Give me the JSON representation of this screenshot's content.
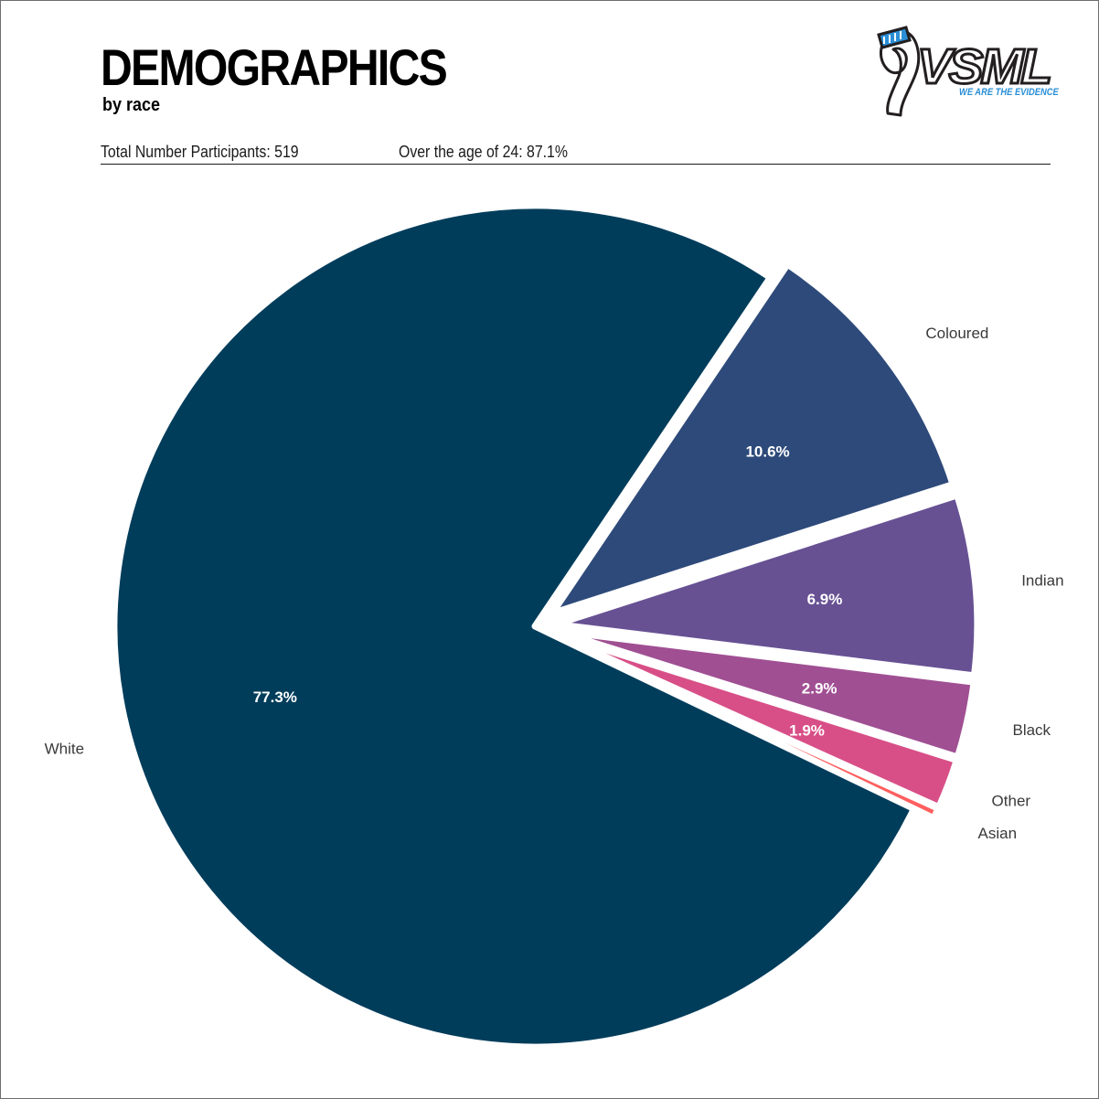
{
  "header": {
    "title": "DEMOGRAPHICS",
    "subtitle": "by race",
    "participants": "Total Number Participants: 519",
    "age": "Over the age of 24: 87.1%"
  },
  "logo": {
    "wordmark": "VSML",
    "tagline": "WE ARE THE EVIDENCE",
    "icon": "ribbon-icon",
    "accent": "#2a8fd6"
  },
  "chart_data": {
    "type": "pie",
    "title": "DEMOGRAPHICS",
    "subtitle": "by race",
    "start_angle_deg": -56,
    "categories": [
      "Coloured",
      "Indian",
      "Black",
      "Other",
      "Asian",
      "White"
    ],
    "values": [
      10.6,
      6.9,
      2.9,
      1.9,
      0.4,
      77.3
    ],
    "value_labels": [
      "10.6%",
      "6.9%",
      "2.9%",
      "1.9%",
      "",
      "77.3%"
    ],
    "colors": [
      "#2e4a7a",
      "#675193",
      "#a04f93",
      "#d84f87",
      "#ff5f5f",
      "#003d5b"
    ],
    "exploded": [
      "Coloured",
      "Indian",
      "Black",
      "Other",
      "Asian"
    ],
    "legend": "none"
  }
}
